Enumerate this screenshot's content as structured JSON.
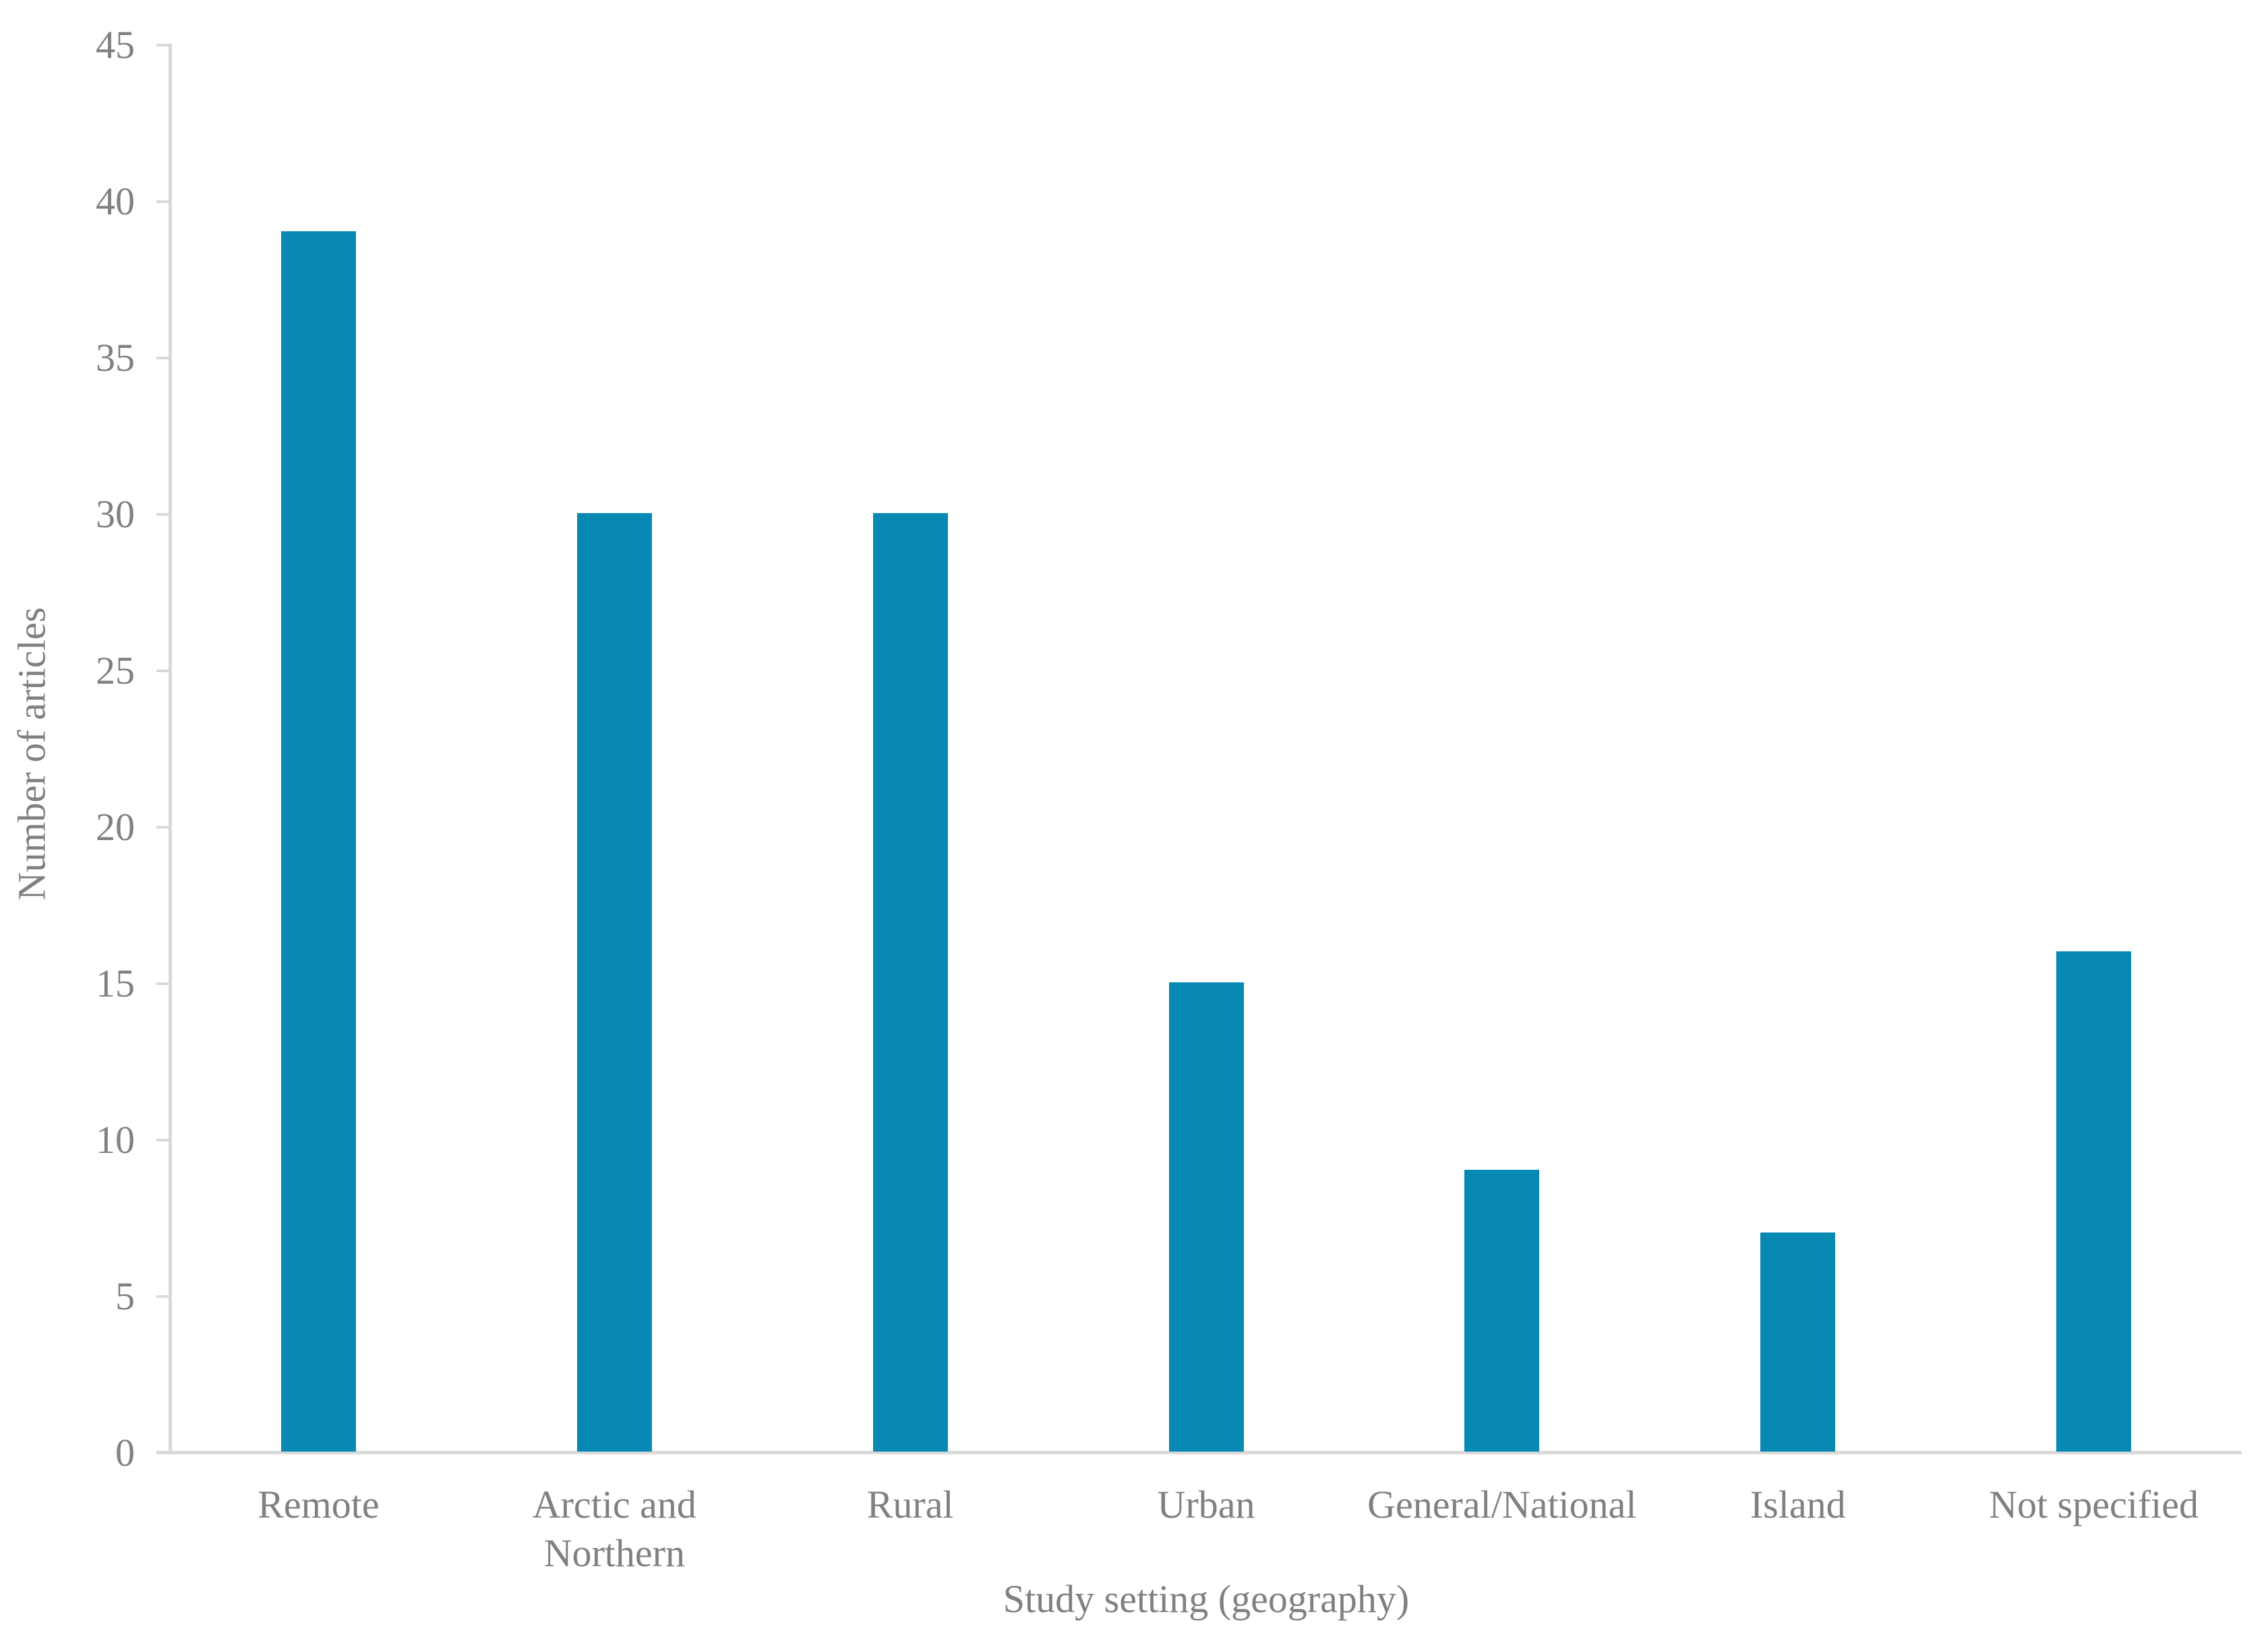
{
  "chart_data": {
    "type": "bar",
    "title": "",
    "categories": [
      "Remote",
      "Arctic and\nNorthern",
      "Rural",
      "Urban",
      "General/National",
      "Island",
      "Not specified"
    ],
    "values": [
      39,
      30,
      30,
      15,
      9,
      7,
      16
    ],
    "xlabel": "Study setting (geography)",
    "ylabel": "Number of articles",
    "ylim": [
      0,
      45
    ],
    "yticks": [
      0,
      5,
      10,
      15,
      20,
      25,
      30,
      35,
      40,
      45
    ],
    "grid": false,
    "legend": false,
    "colors": {
      "bar": "#0789b3",
      "text": "#808080",
      "axis": "#d9d9d9",
      "background": "#ffffff"
    }
  }
}
